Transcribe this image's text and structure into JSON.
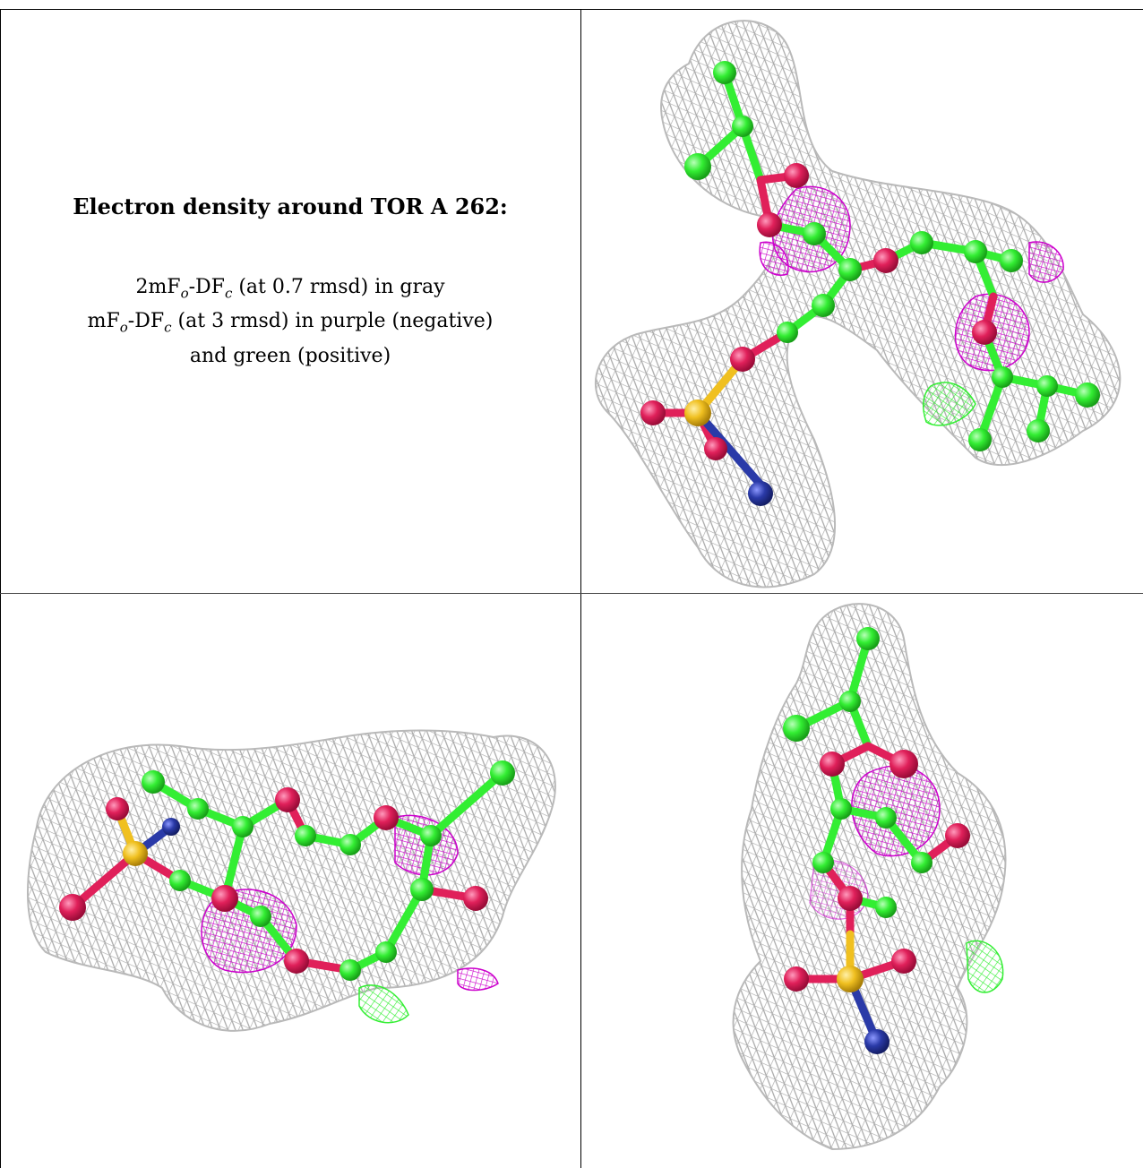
{
  "caption": {
    "title": "Electron density around TOR A 262:",
    "line1_prefix": "2mF",
    "line1_sub_o": "o",
    "line1_mid": "-DF",
    "line1_sub_c": "c",
    "line1_suffix": " (at 0.7 rmsd) in gray",
    "line2_prefix": "mF",
    "line2_sub_o": "o",
    "line2_mid": "-DF",
    "line2_sub_c": "c",
    "line2_suffix": " (at 3 rmsd) in purple (negative)",
    "line3": "and green (positive)"
  },
  "colors": {
    "mesh_gray": "#a9a9a9",
    "mesh_purple": "#cc00cc",
    "mesh_green": "#33ee33",
    "carbon": "#33ee33",
    "oxygen": "#e0205a",
    "sulfur": "#f0c020",
    "nitrogen": "#2a3aa8"
  },
  "views": [
    {
      "name": "view-top-right"
    },
    {
      "name": "view-bottom-left"
    },
    {
      "name": "view-bottom-right"
    }
  ]
}
